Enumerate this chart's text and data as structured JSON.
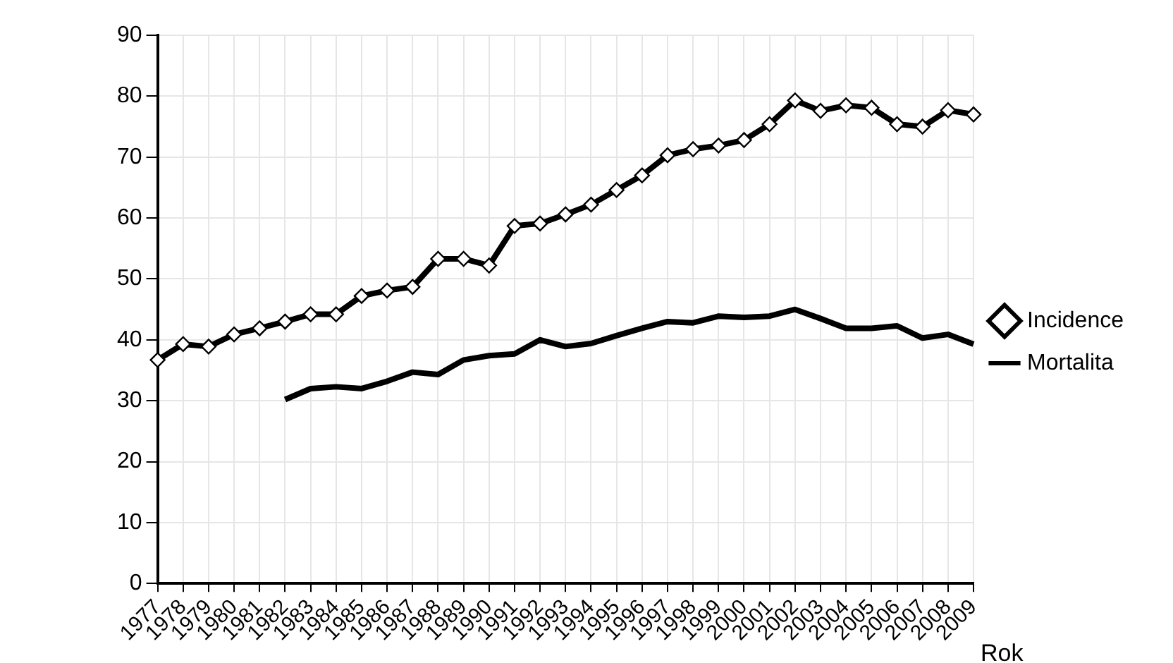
{
  "chart_data": {
    "type": "line",
    "xlabel": "Rok",
    "categories": [
      "1977",
      "1978",
      "1979",
      "1980",
      "1981",
      "1982",
      "1983",
      "1984",
      "1985",
      "1986",
      "1987",
      "1988",
      "1989",
      "1990",
      "1991",
      "1992",
      "1993",
      "1994",
      "1995",
      "1996",
      "1997",
      "1998",
      "1999",
      "2000",
      "2001",
      "2002",
      "2003",
      "2004",
      "2005",
      "2006",
      "2007",
      "2008",
      "2009"
    ],
    "series": [
      {
        "name": "Incidence",
        "color": "#000000",
        "marker": "diamond",
        "values": [
          36.7,
          39.3,
          38.9,
          40.9,
          41.9,
          43,
          44.2,
          44.2,
          47.2,
          48.1,
          48.7,
          53.3,
          53.3,
          52.2,
          58.7,
          59.1,
          60.6,
          62.2,
          64.6,
          67,
          70.3,
          71.3,
          71.9,
          72.8,
          75.4,
          79.3,
          77.6,
          78.5,
          78.1,
          75.4,
          75,
          77.7,
          77
        ]
      },
      {
        "name": "Mortalita",
        "color": "#000000",
        "marker": "none",
        "values": [
          null,
          null,
          null,
          null,
          null,
          30.2,
          32,
          32.3,
          32,
          33.2,
          34.7,
          34.3,
          36.7,
          37.4,
          37.7,
          40,
          38.9,
          39.4,
          40.7,
          41.9,
          43,
          42.8,
          43.9,
          43.7,
          43.9,
          45,
          43.5,
          41.9,
          41.9,
          42.3,
          40.3,
          40.9,
          39.3
        ]
      }
    ],
    "ylim": [
      0,
      90
    ],
    "yticks": [
      0,
      10,
      20,
      30,
      40,
      50,
      60,
      70,
      80,
      90
    ],
    "grid": true,
    "legend": "right",
    "line_style": "solid"
  }
}
